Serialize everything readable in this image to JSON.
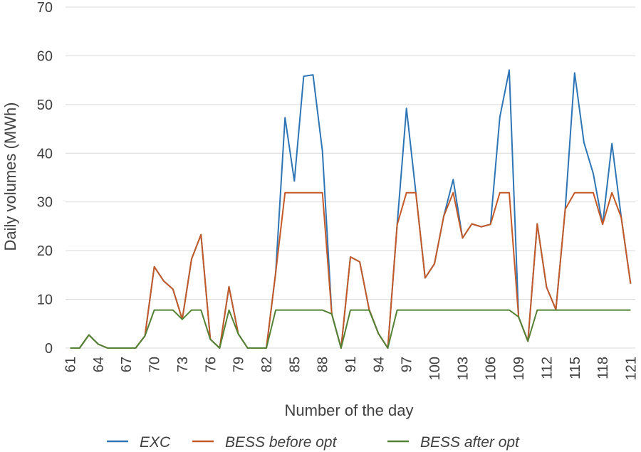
{
  "chart_data": {
    "type": "line",
    "xlabel": "Number of the day",
    "ylabel": "Daily volumes (MWh)",
    "ylim": [
      0,
      70
    ],
    "yticks": [
      0,
      10,
      20,
      30,
      40,
      50,
      60,
      70
    ],
    "xticks": [
      61,
      64,
      67,
      70,
      73,
      76,
      79,
      82,
      85,
      88,
      91,
      94,
      97,
      100,
      103,
      106,
      109,
      112,
      115,
      118,
      121
    ],
    "grid": true,
    "legend": "bottom",
    "x": [
      61,
      62,
      63,
      64,
      65,
      66,
      67,
      68,
      69,
      70,
      71,
      72,
      73,
      74,
      75,
      76,
      77,
      78,
      79,
      80,
      81,
      82,
      83,
      84,
      85,
      86,
      87,
      88,
      89,
      90,
      91,
      92,
      93,
      94,
      95,
      96,
      97,
      98,
      99,
      100,
      101,
      102,
      103,
      104,
      105,
      106,
      107,
      108,
      109,
      110,
      111,
      112,
      113,
      114,
      115,
      116,
      117,
      118,
      119,
      120,
      121
    ],
    "series": [
      {
        "name": "EXC",
        "color": "#2e75b6",
        "values": [
          0,
          0,
          2.7,
          0.8,
          0,
          0,
          0,
          0,
          2.5,
          16.7,
          13.8,
          12.1,
          5.9,
          18.3,
          23.3,
          1.8,
          0,
          12.6,
          2.9,
          0,
          0,
          0,
          15.5,
          47.3,
          34.3,
          55.8,
          56.1,
          40.4,
          7,
          0,
          18.7,
          17.7,
          8,
          3,
          0,
          25.3,
          49.2,
          32,
          14.4,
          17.3,
          27.1,
          34.6,
          22.6,
          25.5,
          24.9,
          25.4,
          47.4,
          57.1,
          6.4,
          1.4,
          25.5,
          12.5,
          7.9,
          28.5,
          56.5,
          42.2,
          35.8,
          25.4,
          42,
          26.8,
          13.2
        ]
      },
      {
        "name": "BESS before opt",
        "color": "#c55a28",
        "values": [
          0,
          0,
          2.7,
          0.8,
          0,
          0,
          0,
          0,
          2.5,
          16.7,
          13.8,
          12.1,
          5.9,
          18.3,
          23.3,
          1.8,
          0,
          12.6,
          2.9,
          0,
          0,
          0,
          15.5,
          31.9,
          31.9,
          31.9,
          31.9,
          31.9,
          7,
          0,
          18.7,
          17.7,
          8,
          3,
          0,
          25.3,
          31.9,
          31.9,
          14.4,
          17.3,
          27.1,
          31.9,
          22.6,
          25.5,
          24.9,
          25.4,
          31.9,
          31.9,
          6.4,
          1.4,
          25.5,
          12.5,
          7.9,
          28.5,
          31.9,
          31.9,
          31.9,
          25.4,
          31.9,
          26.8,
          13.2
        ]
      },
      {
        "name": "BESS after opt",
        "color": "#548235",
        "values": [
          0,
          0,
          2.7,
          0.8,
          0,
          0,
          0,
          0,
          2.5,
          7.8,
          7.8,
          7.8,
          5.9,
          7.8,
          7.8,
          1.8,
          0,
          7.8,
          2.9,
          0,
          0,
          0,
          7.8,
          7.8,
          7.8,
          7.8,
          7.8,
          7.8,
          7,
          0,
          7.8,
          7.8,
          7.8,
          3,
          0,
          7.8,
          7.8,
          7.8,
          7.8,
          7.8,
          7.8,
          7.8,
          7.8,
          7.8,
          7.8,
          7.8,
          7.8,
          7.8,
          6.4,
          1.4,
          7.8,
          7.8,
          7.8,
          7.8,
          7.8,
          7.8,
          7.8,
          7.8,
          7.8,
          7.8,
          7.8
        ]
      }
    ]
  }
}
